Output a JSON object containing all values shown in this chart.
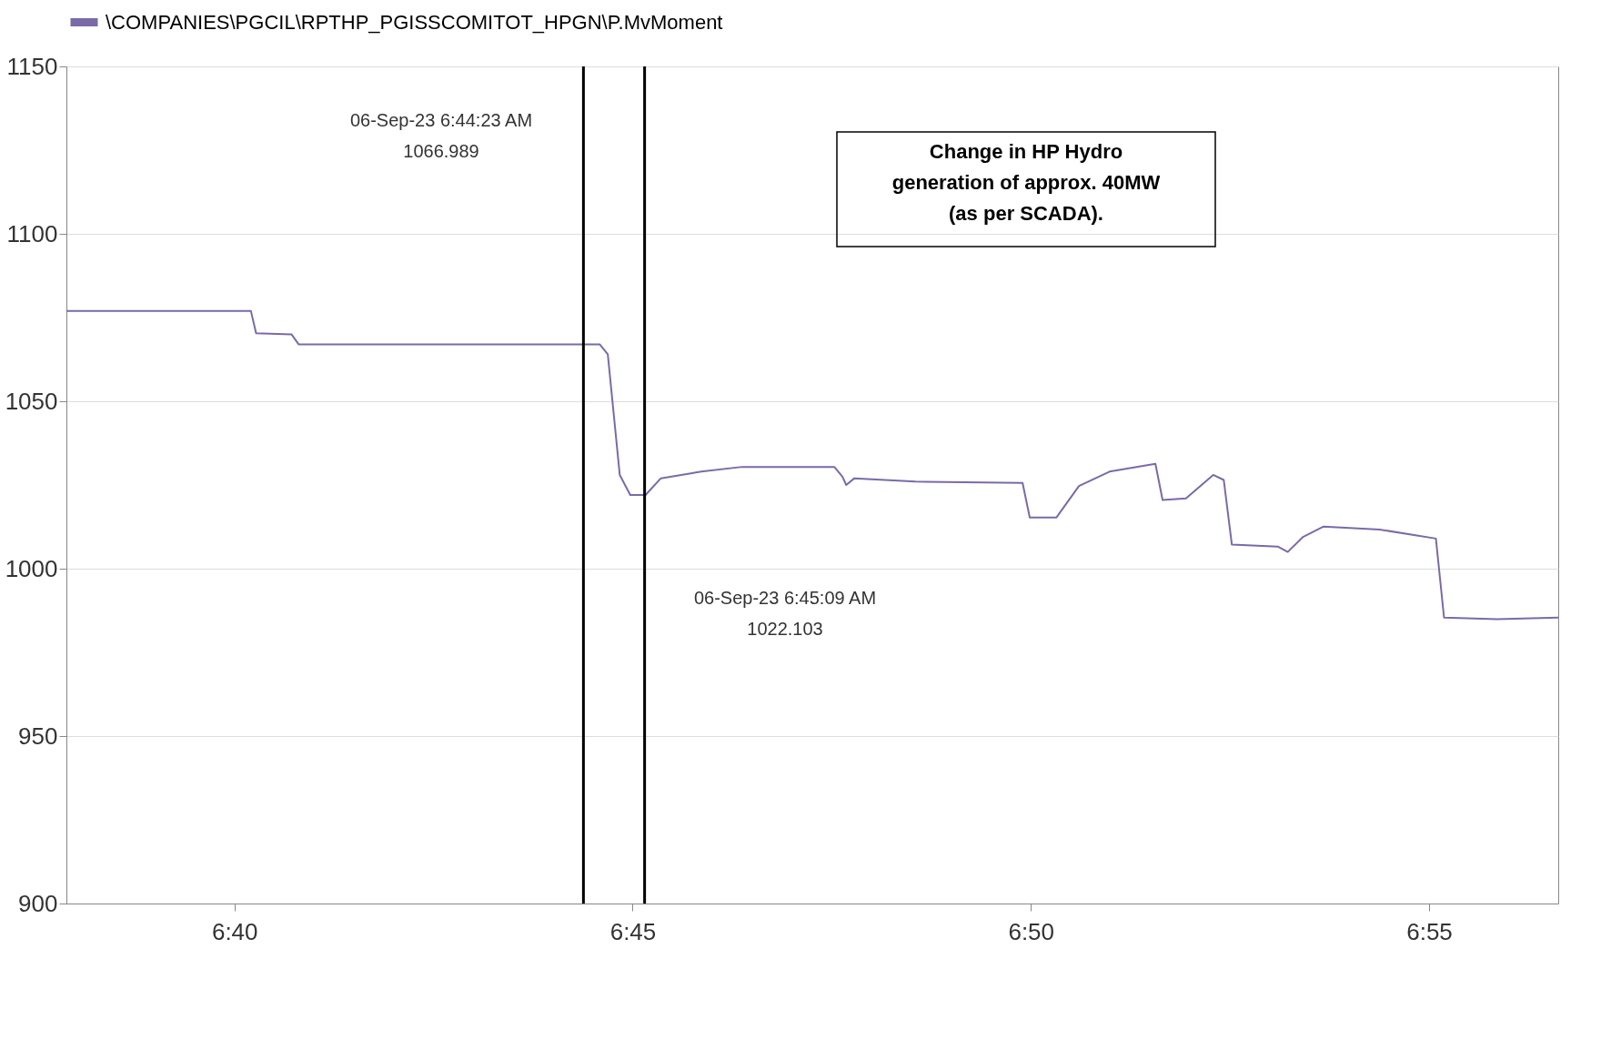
{
  "chart_data": {
    "type": "line",
    "x": [
      6.6315,
      6.6701,
      6.6712,
      6.6786,
      6.6801,
      6.7431,
      6.7448,
      6.7473,
      6.7495,
      6.7527,
      6.7559,
      6.7644,
      6.7729,
      6.7922,
      6.7939,
      6.7947,
      6.7964,
      6.8092,
      6.8316,
      6.8331,
      6.8387,
      6.8434,
      6.8498,
      6.8594,
      6.8609,
      6.8658,
      6.8715,
      6.8737,
      6.8754,
      6.885,
      6.8871,
      6.8903,
      6.8946,
      6.9063,
      6.9138,
      6.9181,
      6.9198,
      6.9309,
      6.9437
    ],
    "series": [
      {
        "name": "\\COMPANIES\\PGCIL\\RPTHP_PGISSCOMITOT_HPGN\\P.MvMoment",
        "color": "#7a6aa8",
        "values": [
          1077,
          1077,
          1070.3,
          1070,
          1067,
          1067,
          1064,
          1028,
          1022,
          1022,
          1027,
          1029,
          1030.4,
          1030.4,
          1027.5,
          1025,
          1027,
          1026,
          1025.6,
          1015.3,
          1015.3,
          1024.7,
          1029,
          1031.3,
          1020.5,
          1021,
          1028,
          1026.5,
          1007.2,
          1006.6,
          1005,
          1009.5,
          1012.6,
          1011.7,
          1010,
          1009,
          985.4,
          984.9,
          985.4
        ]
      }
    ],
    "xlim": [
      6.6315,
      6.9437
    ],
    "xticks": [
      {
        "value": 6.666667,
        "label": "6:40"
      },
      {
        "value": 6.75,
        "label": "6:45"
      },
      {
        "value": 6.833333,
        "label": "6:50"
      },
      {
        "value": 6.916667,
        "label": "6:55"
      }
    ],
    "ylim": [
      900,
      1150
    ],
    "yticks": [
      900,
      950,
      1000,
      1050,
      1100,
      1150
    ],
    "grid": "y",
    "legend": "top left",
    "ref_lines": [
      {
        "axis": "x",
        "value": 6.7397,
        "color": "#000000"
      },
      {
        "axis": "x",
        "value": 6.7525,
        "color": "#000000"
      }
    ],
    "annotations": [
      "06-Sep-23 6:44:23 AM\n1066.989",
      "06-Sep-23 6:45:09 AM\n1022.103",
      "Change in HP Hydro generation of approx. 40MW (as per SCADA)."
    ]
  }
}
